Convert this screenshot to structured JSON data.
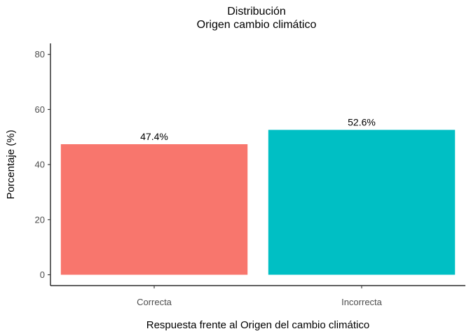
{
  "chart_data": {
    "type": "bar",
    "title": "Distribución",
    "subtitle": "Origen cambio climático",
    "xlabel": "Respuesta frente al Origen del cambio climático",
    "ylabel": "Porcentaje (%)",
    "categories": [
      "Correcta",
      "Incorrecta"
    ],
    "values": [
      47.4,
      52.6
    ],
    "data_labels": [
      "47.4%",
      "52.6%"
    ],
    "colors": [
      "#F8766D",
      "#00BFC4"
    ],
    "ylim": [
      0,
      84
    ],
    "yticks": [
      0,
      20,
      40,
      60,
      80
    ],
    "yticklabels": [
      "0",
      "20",
      "40",
      "60",
      "80"
    ],
    "grid": false,
    "legend": "none"
  }
}
